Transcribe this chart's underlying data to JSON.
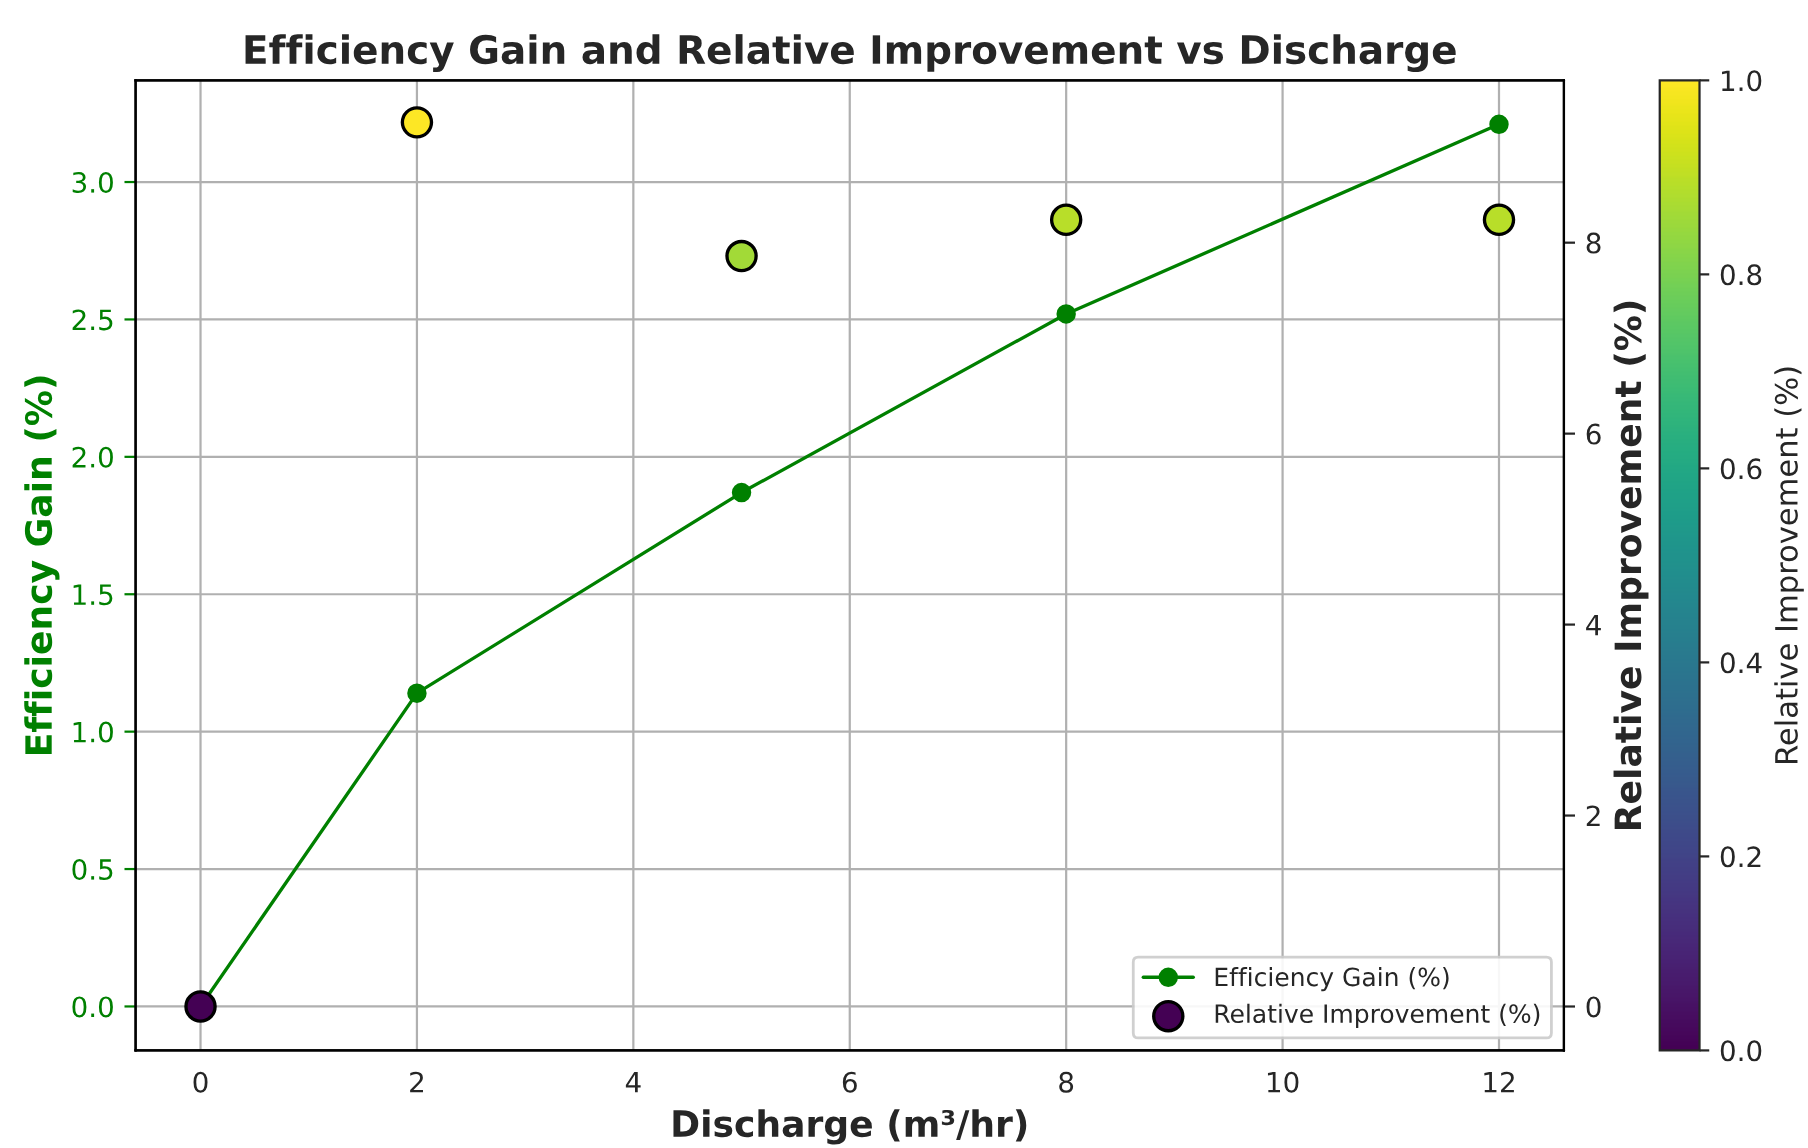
{
  "chart_data": {
    "type": "line",
    "title": "Efficiency Gain and Relative Improvement vs Discharge",
    "xlabel": "Discharge (m³/hr)",
    "ylabel": "Efficiency Gain (%)",
    "y2label": "Relative Improvement (%)",
    "clabel": "Relative Improvement (%)",
    "x": [
      0,
      2,
      5,
      8,
      12
    ],
    "series": [
      {
        "name": "Efficiency Gain (%)",
        "color": "#008000",
        "marker": "circle",
        "values": [
          0.0,
          1.14,
          1.87,
          2.52,
          3.21
        ]
      },
      {
        "name": "Relative Improvement (%)",
        "type": "scatter",
        "axis": "y2",
        "marker": "circle",
        "values": [
          0.0,
          9.26,
          7.86,
          8.24,
          8.24
        ],
        "colors": [
          "#440154",
          "#fde725",
          "#a2da37",
          "#b8de29",
          "#b8de29"
        ]
      }
    ],
    "xlim": [
      -0.6,
      12.6
    ],
    "xticks": [
      0,
      2,
      4,
      6,
      8,
      10,
      12
    ],
    "ylim": [
      -0.16,
      3.37
    ],
    "yticks": [
      {
        "value": 0,
        "label": "0.0"
      },
      {
        "value": 0.5,
        "label": "0.5"
      },
      {
        "value": 1,
        "label": "1.0"
      },
      {
        "value": 1.5,
        "label": "1.5"
      },
      {
        "value": 2,
        "label": "2.0"
      },
      {
        "value": 2.5,
        "label": "2.5"
      },
      {
        "value": 3,
        "label": "3.0"
      }
    ],
    "y2lim": [
      -0.46,
      9.7
    ],
    "y2ticks": [
      0,
      2,
      4,
      6,
      8
    ],
    "clim": [
      0,
      1
    ],
    "cticks": [
      {
        "value": 0,
        "label": "0.0"
      },
      {
        "value": 0.2,
        "label": "0.2"
      },
      {
        "value": 0.4,
        "label": "0.4"
      },
      {
        "value": 0.6,
        "label": "0.6"
      },
      {
        "value": 0.8,
        "label": "0.8"
      },
      {
        "value": 1,
        "label": "1.0"
      }
    ],
    "grid": true,
    "legend": "bottom right"
  }
}
